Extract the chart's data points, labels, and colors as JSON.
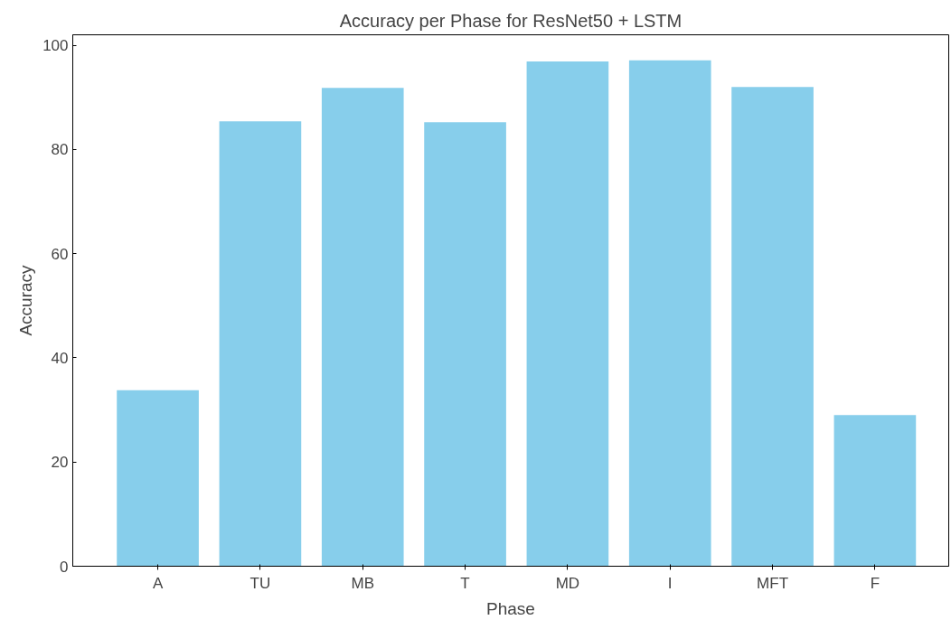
{
  "chart_data": {
    "type": "bar",
    "title": "Accuracy per Phase for ResNet50 + LSTM",
    "xlabel": "Phase",
    "ylabel": "Accuracy",
    "categories": [
      "A",
      "TU",
      "MB",
      "T",
      "MD",
      "I",
      "MFT",
      "F"
    ],
    "values": [
      33.8,
      85.4,
      91.8,
      85.2,
      96.9,
      97.1,
      92.0,
      29.0
    ],
    "color": "#87ceeb",
    "ylim": [
      0,
      102
    ],
    "yticks": [
      0,
      20,
      40,
      60,
      80,
      100
    ],
    "grid": false
  }
}
